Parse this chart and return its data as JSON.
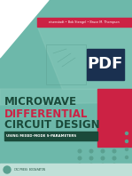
{
  "bg_color": "#6db8aa",
  "title_lines": [
    "MICROWAVE",
    "DIFFERENTIAL",
    "CIRCUIT DESIGN"
  ],
  "title_color": "#1a4a3a",
  "title_color_2": "#cc2244",
  "subtitle": "USING MIXED-MODE S-PARAMETERS",
  "subtitle_color": "#ffffff",
  "subtitle_bg": "#1a4a3a",
  "authors": "eisenstadt • Bob Stengel • Bruce M. Thompson",
  "authors_color": "#ffffff",
  "authors_bg": "#cc2244",
  "pdf_label": "PDF",
  "pdf_bg": "#1a3050",
  "pdf_color": "#ffffff",
  "white_triangle_color": "#ffffff",
  "pink_rect_color": "#cc2244",
  "light_panel_color": "#88c8ba",
  "dot_color": "#5aa090",
  "bottom_bar_color": "#c0e0d8",
  "publisher_color": "#1a4a3a",
  "logo_color": "#5aa090",
  "circuit_color": "#5aa090"
}
